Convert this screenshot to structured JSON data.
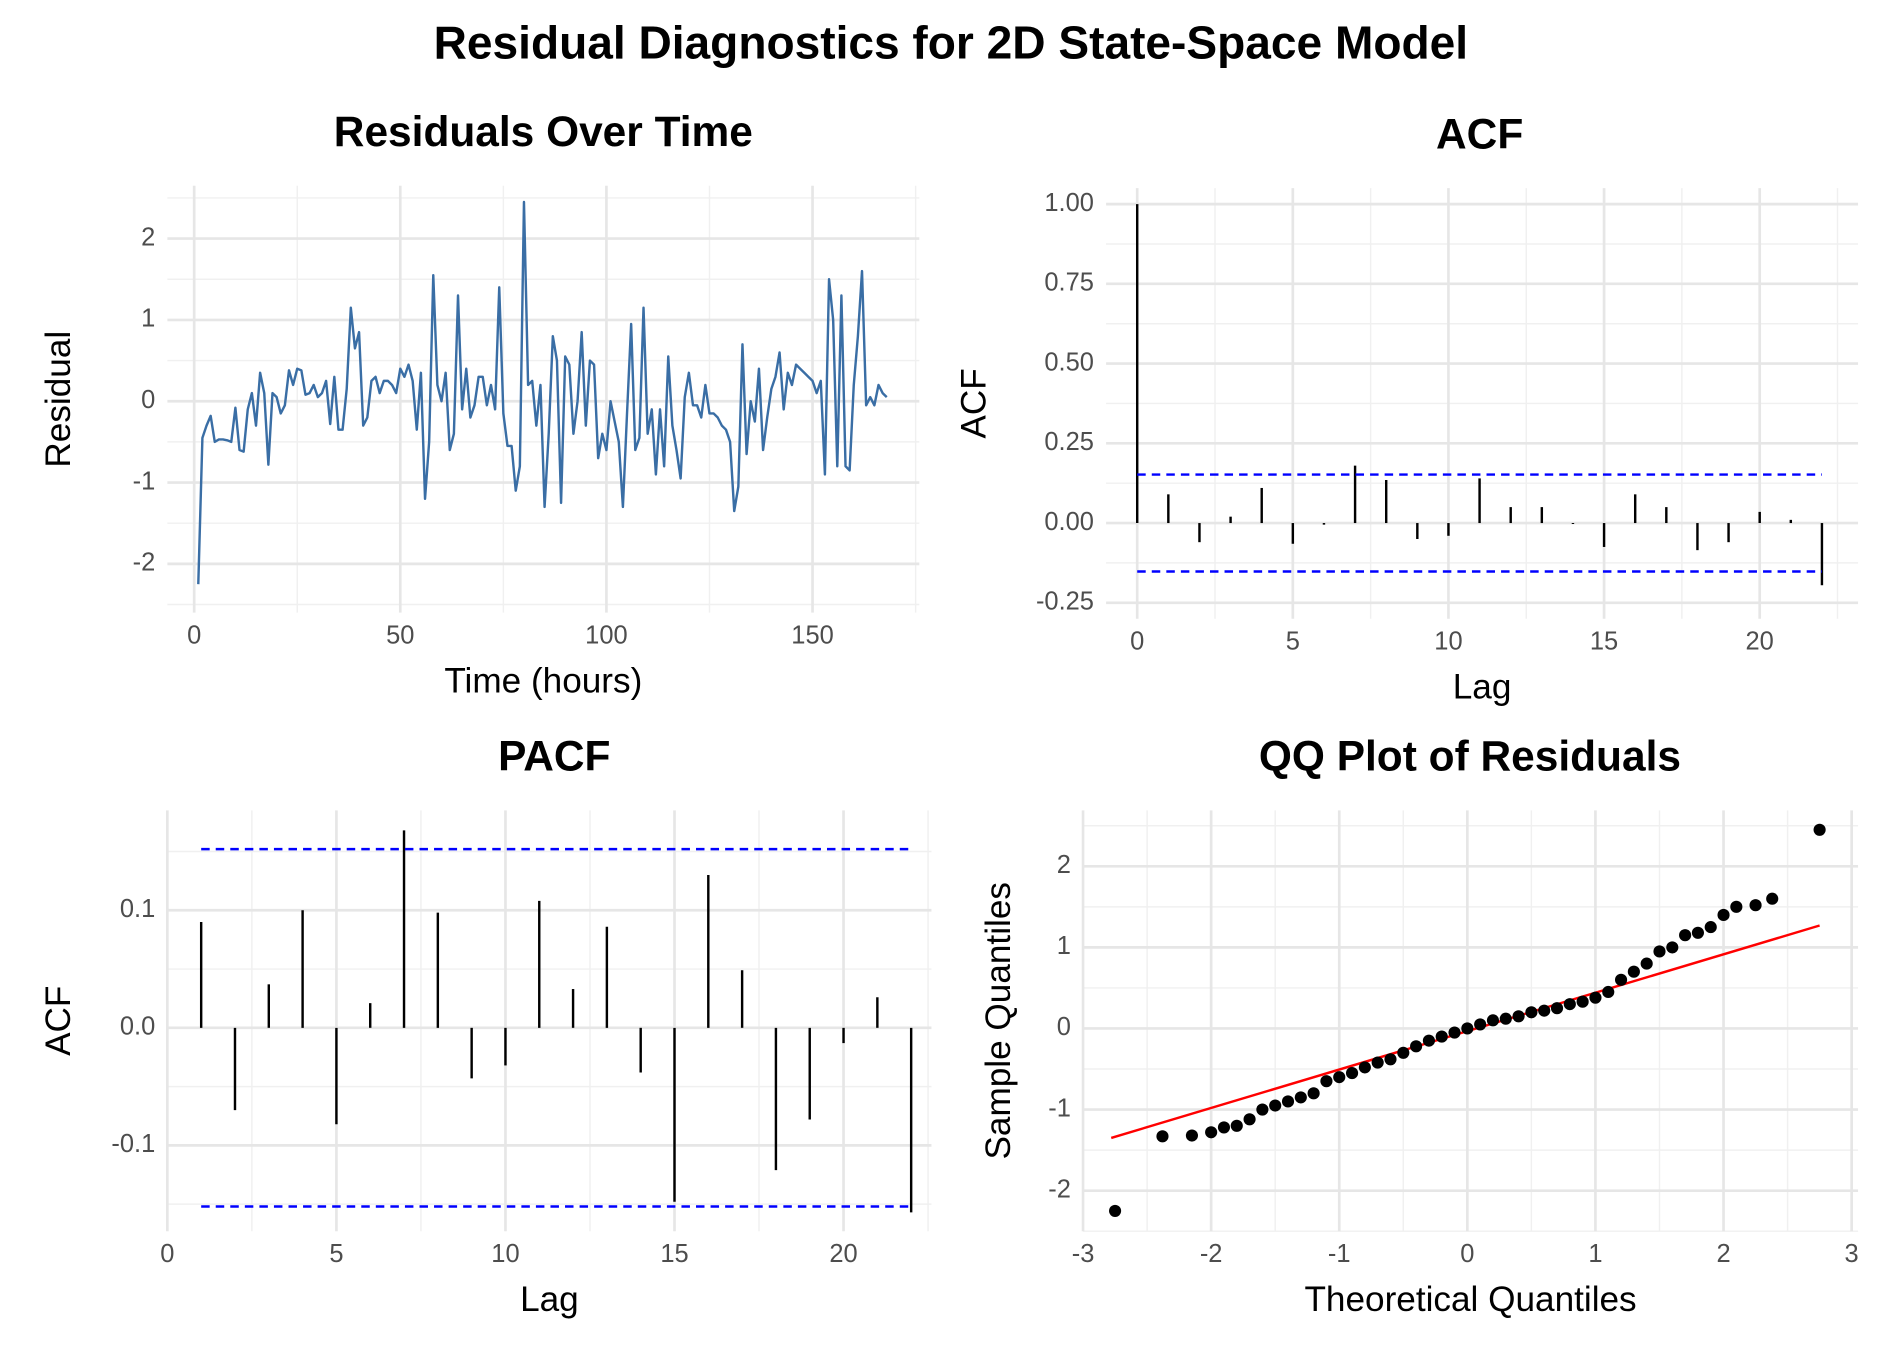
{
  "title": "Residual Diagnostics for 2D State-Space Model",
  "chart_data": [
    {
      "type": "line",
      "title": "Residuals Over Time",
      "x_label": "Time (hours)",
      "y_label": "Residual",
      "color": "#3a6ea5",
      "x": [
        1,
        2,
        3,
        4,
        5,
        6,
        7,
        8,
        9,
        10,
        11,
        12,
        13,
        14,
        15,
        16,
        17,
        18,
        19,
        20,
        21,
        22,
        23,
        24,
        25,
        26,
        27,
        28,
        29,
        30,
        31,
        32,
        33,
        34,
        35,
        36,
        37,
        38,
        39,
        40,
        41,
        42,
        43,
        44,
        45,
        46,
        47,
        48,
        49,
        50,
        51,
        52,
        53,
        54,
        55,
        56,
        57,
        58,
        59,
        60,
        61,
        62,
        63,
        64,
        65,
        66,
        67,
        68,
        69,
        70,
        71,
        72,
        73,
        74,
        75,
        76,
        77,
        78,
        79,
        80,
        81,
        82,
        83,
        84,
        85,
        86,
        87,
        88,
        89,
        90,
        91,
        92,
        93,
        94,
        95,
        96,
        97,
        98,
        99,
        100,
        101,
        102,
        103,
        104,
        105,
        106,
        107,
        108,
        109,
        110,
        111,
        112,
        113,
        114,
        115,
        116,
        117,
        118,
        119,
        120,
        121,
        122,
        123,
        124,
        125,
        126,
        127,
        128,
        129,
        130,
        131,
        132,
        133,
        134,
        135,
        136,
        137,
        138,
        139,
        140,
        141,
        142,
        143,
        144,
        145,
        146,
        147,
        148,
        149,
        150,
        151,
        152,
        153,
        154,
        155,
        156,
        157,
        158,
        159,
        160,
        161,
        162,
        163,
        164,
        165,
        166,
        167,
        168
      ],
      "values": [
        -2.25,
        -0.45,
        -0.3,
        -0.18,
        -0.5,
        -0.47,
        -0.47,
        -0.48,
        -0.5,
        -0.08,
        -0.6,
        -0.62,
        -0.1,
        0.1,
        -0.3,
        0.35,
        0.1,
        -0.78,
        0.1,
        0.05,
        -0.15,
        -0.05,
        0.38,
        0.2,
        0.4,
        0.38,
        0.08,
        0.1,
        0.2,
        0.05,
        0.1,
        0.25,
        -0.28,
        0.3,
        -0.35,
        -0.35,
        0.15,
        1.15,
        0.65,
        0.85,
        -0.3,
        -0.2,
        0.25,
        0.3,
        0.1,
        0.25,
        0.25,
        0.2,
        0.1,
        0.4,
        0.3,
        0.45,
        0.25,
        -0.35,
        0.35,
        -1.2,
        -0.5,
        1.55,
        0.2,
        0.0,
        0.35,
        -0.6,
        -0.4,
        1.3,
        -0.1,
        0.4,
        -0.2,
        -0.05,
        0.3,
        0.3,
        -0.05,
        0.2,
        -0.1,
        1.4,
        -0.15,
        -0.55,
        -0.55,
        -1.1,
        -0.8,
        2.45,
        0.2,
        0.25,
        -0.3,
        0.2,
        -1.3,
        -0.4,
        0.8,
        0.5,
        -1.25,
        0.55,
        0.45,
        -0.4,
        0.0,
        0.85,
        -0.3,
        0.5,
        0.45,
        -0.7,
        -0.4,
        -0.6,
        0.0,
        -0.25,
        -0.5,
        -1.3,
        -0.15,
        0.95,
        -0.6,
        -0.45,
        1.15,
        -0.4,
        -0.1,
        -0.9,
        -0.1,
        -0.8,
        0.55,
        -0.3,
        -0.6,
        -0.95,
        0.05,
        0.35,
        -0.05,
        -0.05,
        -0.2,
        0.2,
        -0.15,
        -0.15,
        -0.2,
        -0.3,
        -0.35,
        -0.5,
        -1.35,
        -1.05,
        0.7,
        -0.65,
        0.0,
        -0.25,
        0.4,
        -0.6,
        -0.2,
        0.15,
        0.3,
        0.6,
        -0.1,
        0.35,
        0.2,
        0.45,
        0.4,
        0.35,
        0.3,
        0.25,
        0.1,
        0.25,
        -0.9,
        1.5,
        1.0,
        -0.8,
        1.3,
        -0.8,
        -0.85,
        0.2,
        0.8,
        1.6,
        -0.05,
        0.05,
        -0.05,
        0.2,
        0.1,
        0.05
      ],
      "xlim": [
        -6.5,
        175.9
      ],
      "ylim": [
        -2.6,
        2.65
      ],
      "xticks": [
        0,
        50,
        100,
        150
      ],
      "yticks": [
        -2,
        -1,
        0,
        1,
        2
      ],
      "grid": true
    },
    {
      "type": "stem",
      "title": "ACF",
      "x_label": "Lag",
      "y_label": "ACF",
      "color": "#000000",
      "x": [
        0,
        1,
        2,
        3,
        4,
        5,
        6,
        7,
        8,
        9,
        10,
        11,
        12,
        13,
        14,
        15,
        16,
        17,
        18,
        19,
        20,
        21,
        22
      ],
      "values": [
        1,
        0.09,
        -0.06,
        0.02,
        0.11,
        -0.065,
        -0.005,
        0.18,
        0.135,
        -0.05,
        -0.04,
        0.14,
        0.05,
        0.05,
        -0.003,
        -0.075,
        0.09,
        0.05,
        -0.085,
        -0.06,
        0.035,
        0.01,
        -0.195
      ],
      "ci": [
        0.152,
        -0.152
      ],
      "ci_color": "#0000ff",
      "xlim": [
        -1.0,
        23.16
      ],
      "ylim": [
        -0.3,
        1.05
      ],
      "xticks": [
        0,
        5,
        10,
        15,
        20
      ],
      "yticks": [
        -0.25,
        {
          "value": 0,
          "label": "0.00"
        },
        0.25,
        {
          "value": 0.5,
          "label": "0.50"
        },
        0.75,
        {
          "value": 1,
          "label": "1.00"
        }
      ],
      "grid": true
    },
    {
      "type": "stem",
      "title": "PACF",
      "x_label": "Lag",
      "y_label": "ACF",
      "color": "#000000",
      "x": [
        1,
        2,
        3,
        4,
        5,
        6,
        7,
        8,
        9,
        10,
        11,
        12,
        13,
        14,
        15,
        16,
        17,
        18,
        19,
        20,
        21,
        22
      ],
      "values": [
        0.09,
        -0.07,
        0.037,
        0.1,
        -0.082,
        0.021,
        0.168,
        0.098,
        -0.043,
        -0.032,
        0.108,
        0.033,
        0.086,
        -0.038,
        -0.148,
        0.13,
        0.049,
        -0.121,
        -0.078,
        -0.013,
        0.026,
        -0.157
      ],
      "ci": [
        0.152,
        -0.152
      ],
      "ci_color": "#0000ff",
      "xlim": [
        0,
        22.6
      ],
      "ylim": [
        -0.173,
        0.185
      ],
      "xticks": [
        0,
        5,
        10,
        15,
        20
      ],
      "yticks": [
        -0.1,
        {
          "value": 0,
          "label": "0.0"
        },
        0.1
      ],
      "grid": true
    },
    {
      "type": "scatter",
      "title": "QQ Plot of Residuals",
      "x_label": "Theoretical Quantiles",
      "y_label": "Sample Quantiles",
      "color": "#000000",
      "x": [
        -2.75,
        -2.38,
        -2.15,
        -2.0,
        -1.9,
        -1.8,
        -1.7,
        -1.6,
        -1.5,
        -1.4,
        -1.3,
        -1.2,
        -1.1,
        -1.0,
        -0.9,
        -0.8,
        -0.7,
        -0.6,
        -0.5,
        -0.4,
        -0.3,
        -0.2,
        -0.1,
        0,
        0.1,
        0.2,
        0.3,
        0.4,
        0.5,
        0.6,
        0.7,
        0.8,
        0.9,
        1.0,
        1.1,
        1.2,
        1.3,
        1.4,
        1.5,
        1.6,
        1.7,
        1.8,
        1.9,
        2.0,
        2.1,
        2.25,
        2.38,
        2.75
      ],
      "values": [
        -2.25,
        -1.33,
        -1.32,
        -1.28,
        -1.22,
        -1.2,
        -1.12,
        -1.0,
        -0.95,
        -0.9,
        -0.85,
        -0.8,
        -0.65,
        -0.6,
        -0.55,
        -0.48,
        -0.42,
        -0.38,
        -0.3,
        -0.22,
        -0.15,
        -0.1,
        -0.05,
        0,
        0.05,
        0.1,
        0.12,
        0.15,
        0.2,
        0.22,
        0.25,
        0.3,
        0.33,
        0.38,
        0.45,
        0.6,
        0.7,
        0.8,
        0.95,
        1.0,
        1.15,
        1.18,
        1.25,
        1.4,
        1.5,
        1.52,
        1.6,
        2.45
      ],
      "line": {
        "x": [
          -2.78,
          2.75
        ],
        "y": [
          -1.35,
          1.27
        ],
        "color": "#ff0000"
      },
      "xlim": [
        -3,
        3.05
      ],
      "ylim": [
        -2.5,
        2.69
      ],
      "xticks": [
        -3,
        -2,
        -1,
        0,
        1,
        2,
        3
      ],
      "yticks": [
        -2,
        -1,
        0,
        1,
        2
      ],
      "grid": true
    }
  ]
}
